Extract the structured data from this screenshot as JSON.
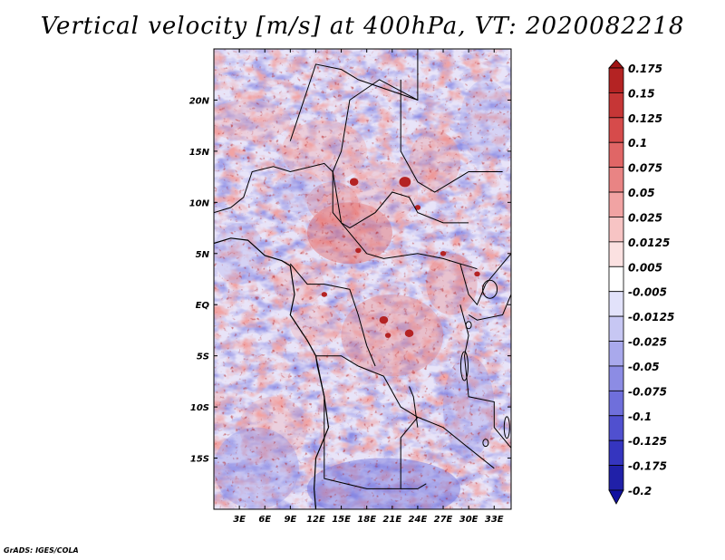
{
  "chart_data": {
    "type": "heatmap",
    "title": "Vertical velocity [m/s] at 400hPa, VT: 2020082218",
    "variable": "Vertical velocity",
    "units": "m/s",
    "level": "400hPa",
    "valid_time": "2020082218",
    "xlim": [
      0,
      35
    ],
    "ylim": [
      -20,
      25
    ],
    "x_ticks": [
      3,
      6,
      9,
      12,
      15,
      18,
      21,
      24,
      27,
      30,
      33
    ],
    "x_tick_labels": [
      "3E",
      "6E",
      "9E",
      "12E",
      "15E",
      "18E",
      "21E",
      "24E",
      "27E",
      "30E",
      "33E"
    ],
    "y_ticks": [
      20,
      15,
      10,
      5,
      0,
      -5,
      -10,
      -15
    ],
    "y_tick_labels": [
      "20N",
      "15N",
      "10N",
      "5N",
      "EQ",
      "5S",
      "10S",
      "15S"
    ],
    "colorbar": {
      "levels": [
        "0.175",
        "0.15",
        "0.125",
        "0.1",
        "0.075",
        "0.05",
        "0.025",
        "0.0125",
        "0.005",
        "-0.005",
        "-0.0125",
        "-0.025",
        "-0.05",
        "-0.075",
        "-0.1",
        "-0.125",
        "-0.175",
        "-0.2"
      ],
      "colors": [
        "#a01414",
        "#b42323",
        "#c63636",
        "#d64b4b",
        "#e06666",
        "#e98484",
        "#f1a3a3",
        "#f7c4c4",
        "#fbe1e1",
        "#ffffff",
        "#e2e2fa",
        "#c7c7f3",
        "#a9a9ec",
        "#8c8ce4",
        "#6f6fdb",
        "#5050cf",
        "#3535bf",
        "#2020a8",
        "#1010a0"
      ]
    }
  },
  "credit": "GrADS: IGES/COLA"
}
